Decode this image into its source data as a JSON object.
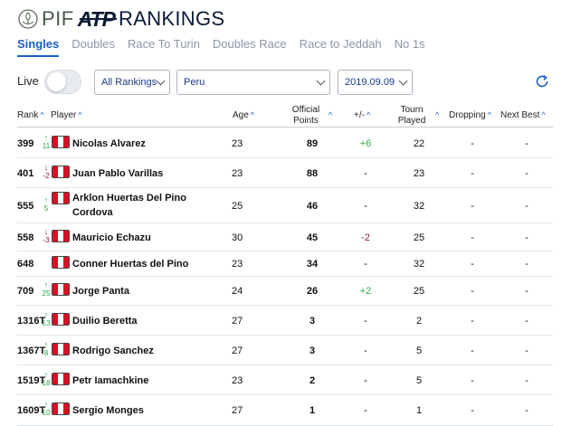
{
  "brand": {
    "pif": "PIF",
    "atp": "ATP",
    "title": "RANKINGS"
  },
  "tabs": [
    {
      "label": "Singles",
      "active": true
    },
    {
      "label": "Doubles"
    },
    {
      "label": "Race To Turin"
    },
    {
      "label": "Doubles Race"
    },
    {
      "label": "Race to Jeddah"
    },
    {
      "label": "No 1s"
    }
  ],
  "filters": {
    "live_label": "Live",
    "live_on": false,
    "ranking_type": "All Rankings",
    "country": "Peru",
    "date": "2019.09.09"
  },
  "columns": {
    "rank": "Rank",
    "player": "Player",
    "age": "Age",
    "points_line1": "Official",
    "points_line2": "Points",
    "change": "+/-",
    "tourn_line1": "Tourn",
    "tourn_line2": "Played",
    "dropping": "Dropping",
    "next_best": "Next Best"
  },
  "colors": {
    "accent": "#1a5fc8",
    "up": "#2fa84f",
    "down": "#8a2338"
  },
  "rows": [
    {
      "rank": "399",
      "move_dir": "up",
      "move": "11",
      "name_line1": "Nicolas Alvarez",
      "name_line2": "",
      "age": "23",
      "points": "89",
      "change": "+6",
      "tourn": "22",
      "dropping": "-",
      "next_best": "-"
    },
    {
      "rank": "401",
      "move_dir": "down",
      "move": "-2",
      "name_line1": "Juan Pablo Varillas",
      "name_line2": "",
      "age": "23",
      "points": "88",
      "change": "-",
      "tourn": "23",
      "dropping": "-",
      "next_best": "-"
    },
    {
      "rank": "555",
      "move_dir": "up",
      "move": "5",
      "name_line1": "Arklon Huertas Del Pino",
      "name_line2": "Cordova",
      "age": "25",
      "points": "46",
      "change": "-",
      "tourn": "32",
      "dropping": "-",
      "next_best": "-"
    },
    {
      "rank": "558",
      "move_dir": "down",
      "move": "-3",
      "name_line1": "Mauricio Echazu",
      "name_line2": "",
      "age": "30",
      "points": "45",
      "change": "-2",
      "tourn": "25",
      "dropping": "-",
      "next_best": "-"
    },
    {
      "rank": "648",
      "move_dir": "",
      "move": "",
      "name_line1": "Conner Huertas del Pino",
      "name_line2": "",
      "age": "23",
      "points": "34",
      "change": "-",
      "tourn": "32",
      "dropping": "-",
      "next_best": "-"
    },
    {
      "rank": "709",
      "move_dir": "up",
      "move": "25",
      "name_line1": "Jorge Panta",
      "name_line2": "",
      "age": "24",
      "points": "26",
      "change": "+2",
      "tourn": "25",
      "dropping": "-",
      "next_best": "-"
    },
    {
      "rank": "1316T",
      "move_dir": "up",
      "move": "13",
      "name_line1": "Duilio Beretta",
      "name_line2": "",
      "age": "27",
      "points": "3",
      "change": "-",
      "tourn": "2",
      "dropping": "-",
      "next_best": "-"
    },
    {
      "rank": "1367T",
      "move_dir": "up",
      "move": "8",
      "name_line1": "Rodrigo Sanchez",
      "name_line2": "",
      "age": "27",
      "points": "3",
      "change": "-",
      "tourn": "5",
      "dropping": "-",
      "next_best": "-"
    },
    {
      "rank": "1519T",
      "move_dir": "up",
      "move": "18",
      "name_line1": "Petr Iamachkine",
      "name_line2": "",
      "age": "23",
      "points": "2",
      "change": "-",
      "tourn": "5",
      "dropping": "-",
      "next_best": "-"
    },
    {
      "rank": "1609T",
      "move_dir": "up",
      "move": "10",
      "name_line1": "Sergio Monges",
      "name_line2": "",
      "age": "27",
      "points": "1",
      "change": "-",
      "tourn": "1",
      "dropping": "-",
      "next_best": "-"
    }
  ]
}
